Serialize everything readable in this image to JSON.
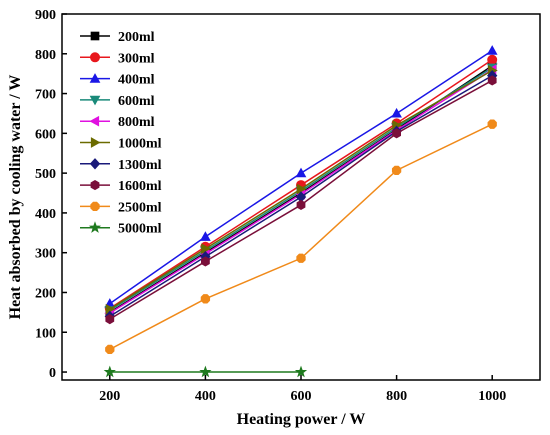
{
  "chart_data": {
    "type": "line",
    "title": "",
    "xlabel": "Heating power / W",
    "ylabel": "Heat absorbed by cooling water / W",
    "xlim": [
      100,
      1100
    ],
    "ylim": [
      -20,
      900
    ],
    "x_ticks": [
      200,
      400,
      600,
      800,
      1000
    ],
    "y_ticks": [
      0,
      100,
      200,
      300,
      400,
      500,
      600,
      700,
      800,
      900
    ],
    "grid": false,
    "legend_position": "top-left",
    "series": [
      {
        "name": "200ml",
        "color": "#000000",
        "marker": "square",
        "x": [
          200,
          400,
          600,
          800,
          1000
        ],
        "y": [
          150,
          300,
          450,
          610,
          770
        ]
      },
      {
        "name": "300ml",
        "color": "#e8171d",
        "marker": "circle",
        "x": [
          200,
          400,
          600,
          800,
          1000
        ],
        "y": [
          160,
          315,
          470,
          625,
          785
        ]
      },
      {
        "name": "400ml",
        "color": "#1a17e6",
        "marker": "triangle-up",
        "x": [
          200,
          400,
          600,
          800,
          1000
        ],
        "y": [
          172,
          340,
          500,
          650,
          808
        ]
      },
      {
        "name": "600ml",
        "color": "#1a8a7a",
        "marker": "triangle-down",
        "x": [
          200,
          400,
          600,
          800,
          1000
        ],
        "y": [
          155,
          305,
          455,
          615,
          765
        ]
      },
      {
        "name": "800ml",
        "color": "#e010e0",
        "marker": "triangle-left",
        "x": [
          200,
          400,
          600,
          800,
          1000
        ],
        "y": [
          148,
          297,
          447,
          608,
          760
        ]
      },
      {
        "name": "1000ml",
        "color": "#6b6b00",
        "marker": "triangle-right",
        "x": [
          200,
          400,
          600,
          800,
          1000
        ],
        "y": [
          158,
          310,
          460,
          620,
          758
        ]
      },
      {
        "name": "1300ml",
        "color": "#1a1a7a",
        "marker": "diamond",
        "x": [
          200,
          400,
          600,
          800,
          1000
        ],
        "y": [
          140,
          290,
          440,
          605,
          745
        ]
      },
      {
        "name": "1600ml",
        "color": "#7a0f3a",
        "marker": "hexagon",
        "x": [
          200,
          400,
          600,
          800,
          1000
        ],
        "y": [
          133,
          278,
          420,
          600,
          733
        ]
      },
      {
        "name": "2500ml",
        "color": "#f08a1a",
        "marker": "octagon",
        "x": [
          200,
          400,
          600,
          800,
          1000
        ],
        "y": [
          57,
          184,
          286,
          507,
          623
        ]
      },
      {
        "name": "5000ml",
        "color": "#1f7a1f",
        "marker": "star",
        "x": [
          200,
          400,
          600
        ],
        "y": [
          0,
          0,
          0
        ]
      }
    ]
  }
}
